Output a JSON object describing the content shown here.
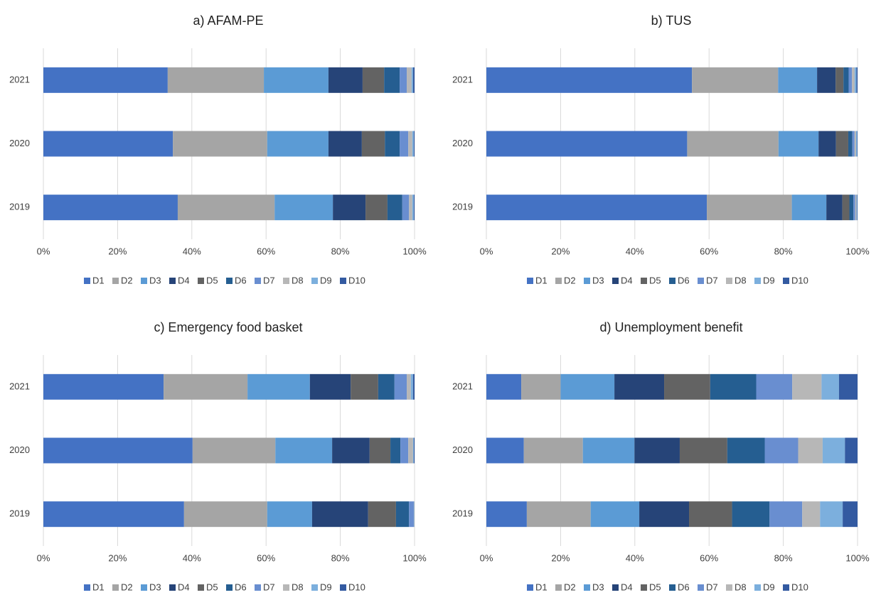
{
  "chart_data": [
    {
      "type": "bar",
      "horizontal": true,
      "stacked": true,
      "title": "a) AFAM-PE",
      "categories": [
        "2019",
        "2020",
        "2021"
      ],
      "xlim": [
        0,
        100
      ],
      "xticks": [
        {
          "value": 0,
          "label": "0%"
        },
        {
          "value": 20,
          "label": "20%"
        },
        {
          "value": 40,
          "label": "40%"
        },
        {
          "value": 60,
          "label": "60%"
        },
        {
          "value": 80,
          "label": "80%"
        },
        {
          "value": 100,
          "label": "100%"
        }
      ],
      "grid": true,
      "legend": "bottom",
      "series": [
        {
          "name": "D1",
          "color": "#4472c4",
          "values": [
            36.2,
            34.9,
            33.5
          ]
        },
        {
          "name": "D2",
          "color": "#a5a5a5",
          "values": [
            26.1,
            25.4,
            25.9
          ]
        },
        {
          "name": "D3",
          "color": "#5b9bd5",
          "values": [
            15.7,
            16.5,
            17.4
          ]
        },
        {
          "name": "D4",
          "color": "#264478",
          "values": [
            8.8,
            9.0,
            9.2
          ]
        },
        {
          "name": "D5",
          "color": "#636363",
          "values": [
            5.9,
            6.2,
            5.8
          ]
        },
        {
          "name": "D6",
          "color": "#255e91",
          "values": [
            4.0,
            4.0,
            4.2
          ]
        },
        {
          "name": "D7",
          "color": "#698ed0",
          "values": [
            1.8,
            2.3,
            1.9
          ]
        },
        {
          "name": "D8",
          "color": "#b7b7b7",
          "values": [
            0.9,
            1.1,
            1.3
          ]
        },
        {
          "name": "D9",
          "color": "#7cafdd",
          "values": [
            0.4,
            0.4,
            0.4
          ]
        },
        {
          "name": "D10",
          "color": "#335aa1",
          "values": [
            0.2,
            0.2,
            0.4
          ]
        }
      ]
    },
    {
      "type": "bar",
      "horizontal": true,
      "stacked": true,
      "title": "b) TUS",
      "categories": [
        "2019",
        "2020",
        "2021"
      ],
      "xlim": [
        0,
        100
      ],
      "xticks": [
        {
          "value": 0,
          "label": "0%"
        },
        {
          "value": 20,
          "label": "20%"
        },
        {
          "value": 40,
          "label": "40%"
        },
        {
          "value": 60,
          "label": "60%"
        },
        {
          "value": 80,
          "label": "80%"
        },
        {
          "value": 100,
          "label": "100%"
        }
      ],
      "grid": true,
      "legend": "bottom",
      "series": [
        {
          "name": "D1",
          "color": "#4472c4",
          "values": [
            59.4,
            54.1,
            55.4
          ]
        },
        {
          "name": "D2",
          "color": "#a5a5a5",
          "values": [
            22.9,
            24.6,
            23.2
          ]
        },
        {
          "name": "D3",
          "color": "#5b9bd5",
          "values": [
            9.3,
            10.8,
            10.5
          ]
        },
        {
          "name": "D4",
          "color": "#264478",
          "values": [
            4.3,
            4.7,
            5.0
          ]
        },
        {
          "name": "D5",
          "color": "#636363",
          "values": [
            1.9,
            3.3,
            2.1
          ]
        },
        {
          "name": "D6",
          "color": "#255e91",
          "values": [
            1.1,
            1.1,
            1.4
          ]
        },
        {
          "name": "D7",
          "color": "#698ed0",
          "values": [
            0.5,
            0.6,
            0.9
          ]
        },
        {
          "name": "D8",
          "color": "#b7b7b7",
          "values": [
            0.3,
            0.4,
            0.7
          ]
        },
        {
          "name": "D9",
          "color": "#7cafdd",
          "values": [
            0.2,
            0.3,
            0.5
          ]
        },
        {
          "name": "D10",
          "color": "#335aa1",
          "values": [
            0.1,
            0.1,
            0.3
          ]
        }
      ]
    },
    {
      "type": "bar",
      "horizontal": true,
      "stacked": true,
      "title": "c) Emergency food basket",
      "categories": [
        "2019",
        "2020",
        "2021"
      ],
      "xlim": [
        0,
        100
      ],
      "xticks": [
        {
          "value": 0,
          "label": "0%"
        },
        {
          "value": 20,
          "label": "20%"
        },
        {
          "value": 40,
          "label": "40%"
        },
        {
          "value": 60,
          "label": "60%"
        },
        {
          "value": 80,
          "label": "80%"
        },
        {
          "value": 100,
          "label": "100%"
        }
      ],
      "grid": true,
      "legend": "bottom",
      "series": [
        {
          "name": "D1",
          "color": "#4472c4",
          "values": [
            37.9,
            40.2,
            32.4
          ]
        },
        {
          "name": "D2",
          "color": "#a5a5a5",
          "values": [
            22.4,
            22.3,
            22.6
          ]
        },
        {
          "name": "D3",
          "color": "#5b9bd5",
          "values": [
            12.1,
            15.3,
            16.8
          ]
        },
        {
          "name": "D4",
          "color": "#264478",
          "values": [
            15.1,
            10.1,
            11.0
          ]
        },
        {
          "name": "D5",
          "color": "#636363",
          "values": [
            7.5,
            5.6,
            7.4
          ]
        },
        {
          "name": "D6",
          "color": "#255e91",
          "values": [
            3.5,
            2.7,
            4.4
          ]
        },
        {
          "name": "D7",
          "color": "#698ed0",
          "values": [
            1.3,
            2.1,
            3.3
          ]
        },
        {
          "name": "D8",
          "color": "#b7b7b7",
          "values": [
            0.1,
            1.3,
            1.1
          ]
        },
        {
          "name": "D9",
          "color": "#7cafdd",
          "values": [
            0.1,
            0.2,
            0.6
          ]
        },
        {
          "name": "D10",
          "color": "#335aa1",
          "values": [
            0,
            0.2,
            0.4
          ]
        }
      ]
    },
    {
      "type": "bar",
      "horizontal": true,
      "stacked": true,
      "title": "d) Unemployment benefit",
      "categories": [
        "2019",
        "2020",
        "2021"
      ],
      "xlim": [
        0,
        100
      ],
      "xticks": [
        {
          "value": 0,
          "label": "0%"
        },
        {
          "value": 20,
          "label": "20%"
        },
        {
          "value": 40,
          "label": "40%"
        },
        {
          "value": 60,
          "label": "60%"
        },
        {
          "value": 80,
          "label": "80%"
        },
        {
          "value": 100,
          "label": "100%"
        }
      ],
      "grid": true,
      "legend": "bottom",
      "series": [
        {
          "name": "D1",
          "color": "#4472c4",
          "values": [
            10.9,
            10.1,
            9.4
          ]
        },
        {
          "name": "D2",
          "color": "#a5a5a5",
          "values": [
            17.2,
            15.9,
            10.6
          ]
        },
        {
          "name": "D3",
          "color": "#5b9bd5",
          "values": [
            13.1,
            13.9,
            14.5
          ]
        },
        {
          "name": "D4",
          "color": "#264478",
          "values": [
            13.4,
            12.2,
            13.4
          ]
        },
        {
          "name": "D5",
          "color": "#636363",
          "values": [
            11.6,
            12.8,
            12.4
          ]
        },
        {
          "name": "D6",
          "color": "#255e91",
          "values": [
            10.1,
            10.1,
            12.4
          ]
        },
        {
          "name": "D7",
          "color": "#698ed0",
          "values": [
            8.8,
            9.0,
            9.7
          ]
        },
        {
          "name": "D8",
          "color": "#b7b7b7",
          "values": [
            4.8,
            6.6,
            7.9
          ]
        },
        {
          "name": "D9",
          "color": "#7cafdd",
          "values": [
            6.1,
            6.0,
            4.7
          ]
        },
        {
          "name": "D10",
          "color": "#335aa1",
          "values": [
            4.0,
            3.4,
            5.0
          ]
        }
      ]
    }
  ]
}
